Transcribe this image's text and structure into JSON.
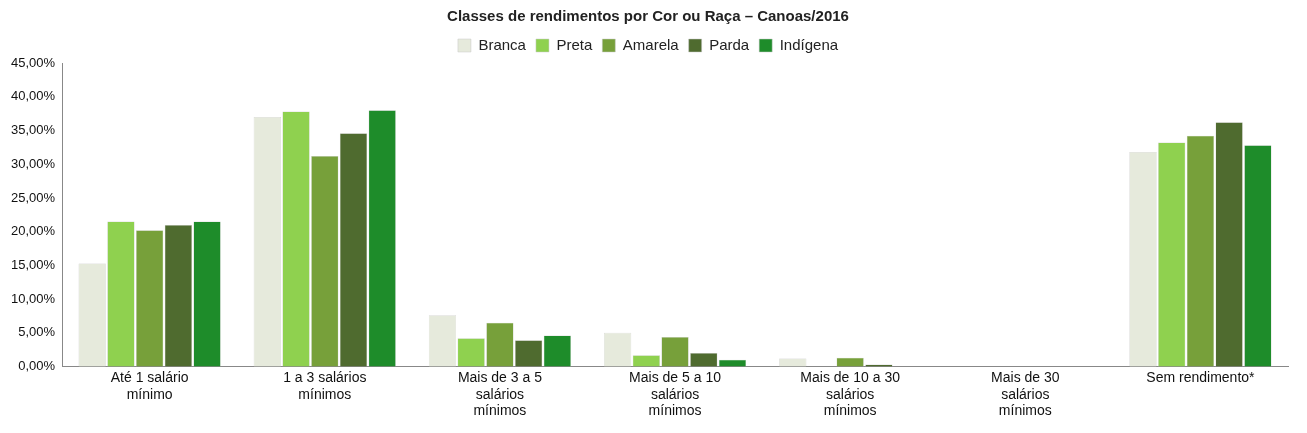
{
  "chart_data": {
    "type": "bar",
    "title": "Classes de rendimentos por Cor ou Raça – Canoas/2016",
    "categories": [
      "Até 1 salário mínimo",
      "1 a 3 salários mínimos",
      "Mais de 3 a 5 salários mínimos",
      "Mais de 5 a 10 salários mínimos",
      "Mais de 10 a 30 salários mínimos",
      "Mais de 30 salários mínimos",
      "Sem rendimento*"
    ],
    "series": [
      {
        "name": "Branca",
        "color": "#e6eadc",
        "values": [
          15.3,
          37,
          7.6,
          5,
          1.2,
          0,
          31.8
        ]
      },
      {
        "name": "Preta",
        "color": "#8fd14f",
        "values": [
          21.5,
          37.8,
          4.2,
          1.7,
          null,
          0,
          33.2
        ]
      },
      {
        "name": "Amarela",
        "color": "#77a03a",
        "values": [
          20.2,
          31.2,
          6.5,
          4.4,
          1.3,
          0,
          34.2
        ]
      },
      {
        "name": "Parda",
        "color": "#4f6b2f",
        "values": [
          21,
          34.6,
          3.9,
          2,
          0.3,
          0,
          36.2
        ]
      },
      {
        "name": "Indígena",
        "color": "#1e8c2a",
        "values": [
          21.5,
          38,
          4.6,
          1,
          0,
          0,
          32.8
        ]
      }
    ],
    "ylim": [
      0,
      45
    ],
    "yticks": [
      {
        "value": 0,
        "label": "0,00%"
      },
      {
        "value": 5,
        "label": "5,00%"
      },
      {
        "value": 10,
        "label": "10,00%"
      },
      {
        "value": 15,
        "label": "15,00%"
      },
      {
        "value": 20,
        "label": "20,00%"
      },
      {
        "value": 25,
        "label": "25,00%"
      },
      {
        "value": 30,
        "label": "30,00%"
      },
      {
        "value": 35,
        "label": "35,00%"
      },
      {
        "value": 40,
        "label": "40,00%"
      },
      {
        "value": 45,
        "label": "45,00%"
      }
    ],
    "grid": false,
    "legend": "top"
  }
}
